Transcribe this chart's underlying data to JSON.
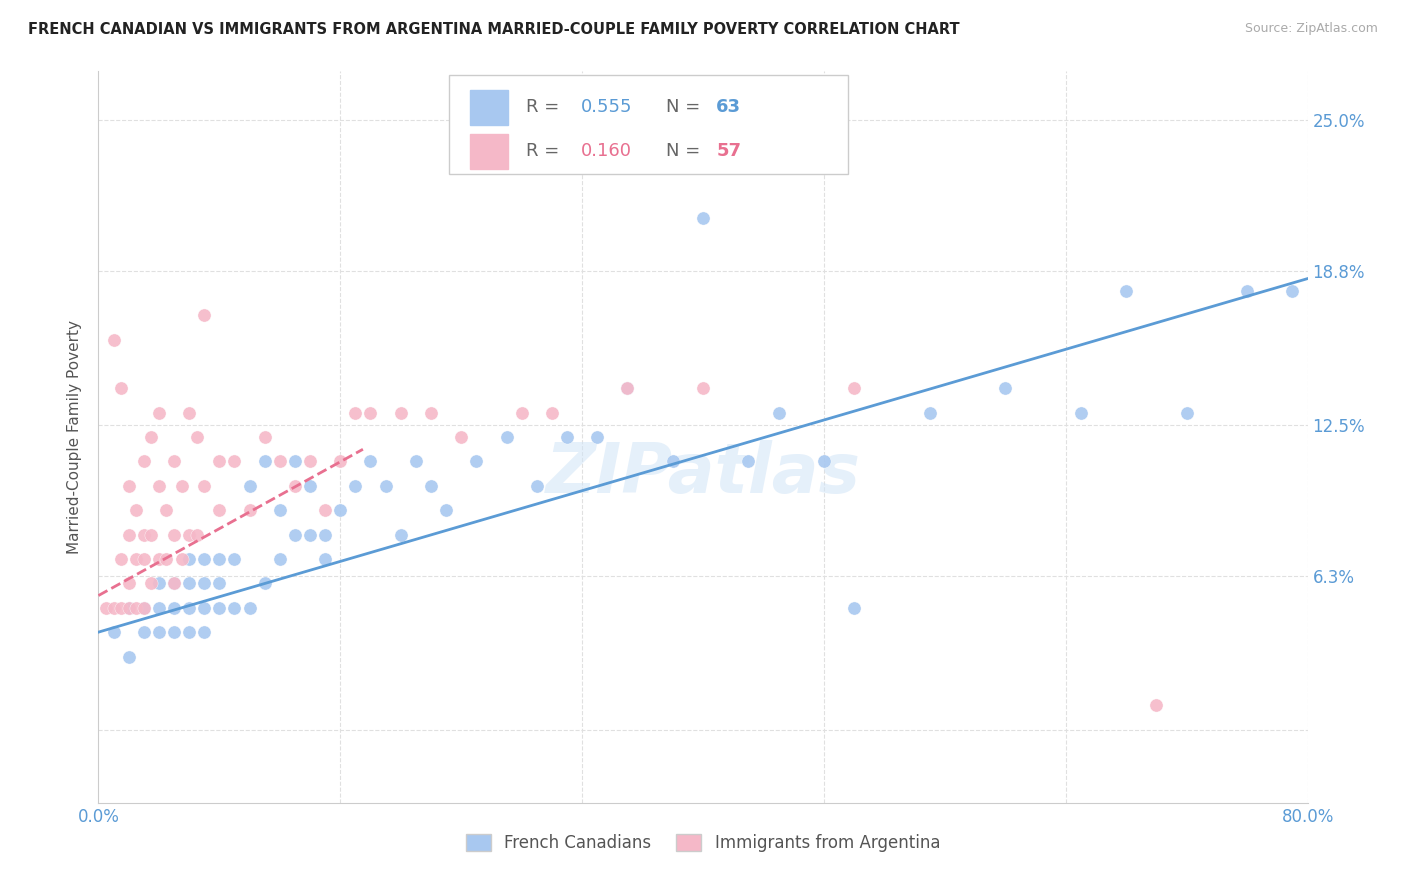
{
  "title": "FRENCH CANADIAN VS IMMIGRANTS FROM ARGENTINA MARRIED-COUPLE FAMILY POVERTY CORRELATION CHART",
  "source": "Source: ZipAtlas.com",
  "ylabel": "Married-Couple Family Poverty",
  "xlim": [
    0.0,
    0.8
  ],
  "ylim": [
    -0.03,
    0.27
  ],
  "xticks": [
    0.0,
    0.16,
    0.32,
    0.48,
    0.64,
    0.8
  ],
  "xticklabels": [
    "0.0%",
    "",
    "",
    "",
    "",
    "80.0%"
  ],
  "ytick_positions": [
    0.0,
    0.063,
    0.125,
    0.188,
    0.25
  ],
  "ytick_labels": [
    "",
    "6.3%",
    "12.5%",
    "18.8%",
    "25.0%"
  ],
  "background_color": "#ffffff",
  "grid_color": "#e0e0e0",
  "blue_color": "#a8c8f0",
  "pink_color": "#f5b8c8",
  "blue_line_color": "#5b9bd5",
  "pink_line_color": "#e87090",
  "legend_R_blue": "0.555",
  "legend_N_blue": "63",
  "legend_R_pink": "0.160",
  "legend_N_pink": "57",
  "watermark": "ZIPatlas",
  "blue_scatter_x": [
    0.01,
    0.02,
    0.02,
    0.03,
    0.03,
    0.04,
    0.04,
    0.04,
    0.05,
    0.05,
    0.05,
    0.06,
    0.06,
    0.06,
    0.06,
    0.07,
    0.07,
    0.07,
    0.07,
    0.08,
    0.08,
    0.08,
    0.09,
    0.09,
    0.1,
    0.1,
    0.11,
    0.11,
    0.12,
    0.12,
    0.13,
    0.13,
    0.14,
    0.14,
    0.15,
    0.15,
    0.16,
    0.17,
    0.18,
    0.19,
    0.2,
    0.21,
    0.22,
    0.23,
    0.25,
    0.27,
    0.29,
    0.31,
    0.33,
    0.35,
    0.38,
    0.4,
    0.43,
    0.45,
    0.48,
    0.5,
    0.55,
    0.6,
    0.65,
    0.68,
    0.72,
    0.76,
    0.79
  ],
  "blue_scatter_y": [
    0.04,
    0.03,
    0.05,
    0.04,
    0.05,
    0.04,
    0.05,
    0.06,
    0.04,
    0.05,
    0.06,
    0.04,
    0.05,
    0.06,
    0.07,
    0.04,
    0.05,
    0.06,
    0.07,
    0.05,
    0.06,
    0.07,
    0.05,
    0.07,
    0.05,
    0.1,
    0.06,
    0.11,
    0.07,
    0.09,
    0.08,
    0.11,
    0.08,
    0.1,
    0.07,
    0.08,
    0.09,
    0.1,
    0.11,
    0.1,
    0.08,
    0.11,
    0.1,
    0.09,
    0.11,
    0.12,
    0.1,
    0.12,
    0.12,
    0.14,
    0.11,
    0.21,
    0.11,
    0.13,
    0.11,
    0.05,
    0.13,
    0.14,
    0.13,
    0.18,
    0.13,
    0.18,
    0.18
  ],
  "pink_scatter_x": [
    0.005,
    0.01,
    0.01,
    0.015,
    0.015,
    0.015,
    0.02,
    0.02,
    0.02,
    0.02,
    0.025,
    0.025,
    0.025,
    0.03,
    0.03,
    0.03,
    0.03,
    0.035,
    0.035,
    0.035,
    0.04,
    0.04,
    0.04,
    0.045,
    0.045,
    0.05,
    0.05,
    0.05,
    0.055,
    0.055,
    0.06,
    0.06,
    0.065,
    0.065,
    0.07,
    0.07,
    0.08,
    0.08,
    0.09,
    0.1,
    0.11,
    0.12,
    0.13,
    0.14,
    0.15,
    0.16,
    0.17,
    0.18,
    0.2,
    0.22,
    0.24,
    0.28,
    0.3,
    0.35,
    0.4,
    0.5,
    0.7
  ],
  "pink_scatter_y": [
    0.05,
    0.05,
    0.16,
    0.05,
    0.07,
    0.14,
    0.05,
    0.06,
    0.08,
    0.1,
    0.05,
    0.07,
    0.09,
    0.05,
    0.07,
    0.08,
    0.11,
    0.06,
    0.08,
    0.12,
    0.07,
    0.1,
    0.13,
    0.07,
    0.09,
    0.06,
    0.08,
    0.11,
    0.07,
    0.1,
    0.08,
    0.13,
    0.08,
    0.12,
    0.1,
    0.17,
    0.09,
    0.11,
    0.11,
    0.09,
    0.12,
    0.11,
    0.1,
    0.11,
    0.09,
    0.11,
    0.13,
    0.13,
    0.13,
    0.13,
    0.12,
    0.13,
    0.13,
    0.14,
    0.14,
    0.14,
    0.01
  ],
  "blue_line_x0": 0.0,
  "blue_line_x1": 0.8,
  "blue_line_y0": 0.04,
  "blue_line_y1": 0.185,
  "pink_line_x0": 0.0,
  "pink_line_x1": 0.175,
  "pink_line_y0": 0.055,
  "pink_line_y1": 0.115
}
